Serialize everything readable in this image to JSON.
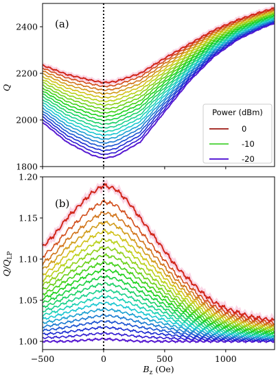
{
  "chart_data": [
    {
      "type": "line",
      "panel_label": "(a)",
      "xlabel": "",
      "ylabel": "Q",
      "xlim": [
        -500,
        1400
      ],
      "ylim": [
        1800,
        2500
      ],
      "xticks": [
        -500,
        0,
        500,
        1000
      ],
      "yticks": [
        1800,
        2000,
        2200,
        2400
      ],
      "vline_x": 0,
      "legend": {
        "title": "Power (dBm)",
        "placement": "right",
        "entries": [
          {
            "label": "0",
            "color": "#a8322d"
          },
          {
            "label": "-10",
            "color": "#5bd64a"
          },
          {
            "label": "-20",
            "color": "#5a1fd6"
          }
        ]
      },
      "power_range_dBm": [
        -20,
        0
      ],
      "series_count": 21,
      "shape": {
        "x": [
          -500,
          -300,
          -100,
          0,
          100,
          300,
          500,
          700,
          900,
          1100,
          1300,
          1400
        ],
        "top_curve_0dBm": [
          2235,
          2195,
          2170,
          2160,
          2165,
          2200,
          2265,
          2325,
          2385,
          2430,
          2465,
          2480
        ],
        "bottom_curve_-20dBm": [
          1990,
          1905,
          1850,
          1835,
          1845,
          1905,
          2035,
          2165,
          2270,
          2345,
          2395,
          2415
        ]
      }
    },
    {
      "type": "line",
      "panel_label": "(b)",
      "xlabel": "Bz (Oe)",
      "ylabel": "Q/QLP",
      "xlim": [
        -500,
        1400
      ],
      "ylim": [
        0.99,
        1.2
      ],
      "xticks": [
        -500,
        0,
        500,
        1000
      ],
      "yticks": [
        1.0,
        1.05,
        1.1,
        1.15,
        1.2
      ],
      "vline_x": 0,
      "power_range_dBm": [
        -20,
        0
      ],
      "series_count": 21,
      "shape": {
        "x": [
          -500,
          -400,
          -300,
          -200,
          -100,
          0,
          100,
          200,
          300,
          400,
          500,
          600,
          700,
          800,
          900,
          1000,
          1200,
          1400
        ],
        "top_curve_0dBm": [
          1.115,
          1.13,
          1.15,
          1.165,
          1.18,
          1.19,
          1.185,
          1.17,
          1.15,
          1.13,
          1.11,
          1.09,
          1.075,
          1.06,
          1.048,
          1.04,
          1.03,
          1.025
        ],
        "bottom_curve_-20dBm": [
          1.0,
          1.0,
          1.0,
          1.001,
          1.002,
          1.003,
          1.002,
          1.001,
          1.0,
          1.0,
          1.0,
          1.0,
          1.0,
          1.0,
          1.0,
          1.0,
          1.0,
          1.0
        ]
      }
    }
  ],
  "axis_text": {
    "a_ylabel_main": "Q",
    "b_ylabel_main": "Q/Q",
    "b_ylabel_sub": "LP",
    "xlabel_main": "B",
    "xlabel_sub": "z",
    "xlabel_unit": " (Oe)",
    "a_yticks": [
      "1800",
      "2000",
      "2200",
      "2400"
    ],
    "b_yticks": [
      "1.00",
      "1.05",
      "1.10",
      "1.15",
      "1.20"
    ],
    "xticks": [
      "−500",
      "0",
      "500",
      "1000"
    ]
  }
}
